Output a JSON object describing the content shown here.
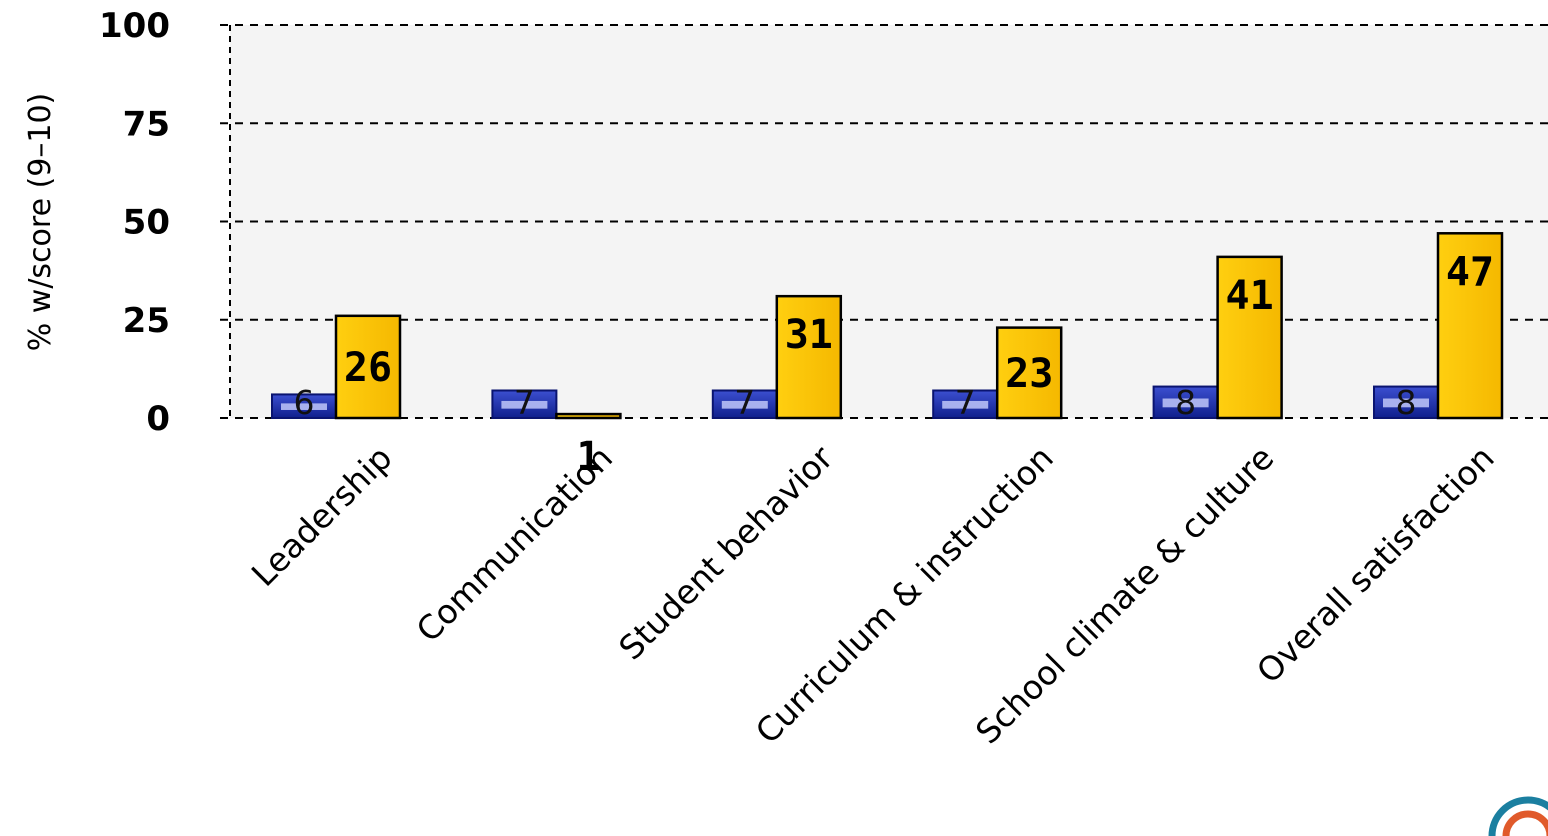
{
  "chart_data": {
    "type": "bar",
    "title": "",
    "xlabel": "",
    "ylabel": "% w/score (9–10)",
    "ylim": [
      0,
      100
    ],
    "yticks": [
      "0",
      "25",
      "50",
      "75",
      "100"
    ],
    "grid": true,
    "categories": [
      "Leadership",
      "Communication",
      "Student behavior",
      "Curriculum & instruction",
      "School climate & culture",
      "Overall satisfaction"
    ],
    "series": [
      {
        "values": [
          6,
          7,
          7,
          7,
          8,
          8
        ],
        "color": "#1a2a9e"
      },
      {
        "values": [
          26,
          1,
          31,
          23,
          41,
          47
        ],
        "color": "#ffc800"
      }
    ]
  },
  "logo": {
    "icon": "target-logo-icon",
    "color": "#1b7fa0",
    "accent": "#e05a2b"
  }
}
